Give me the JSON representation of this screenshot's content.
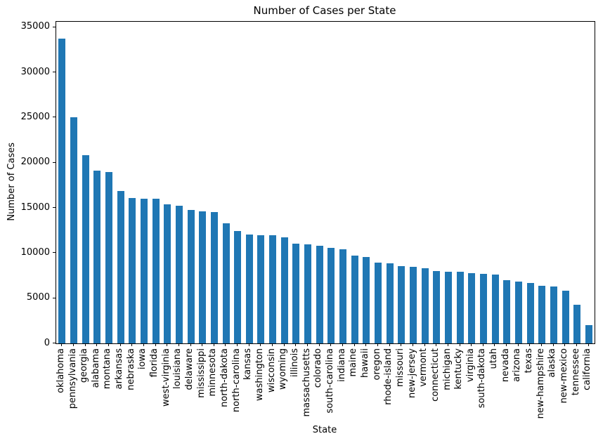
{
  "chart_data": {
    "type": "bar",
    "title": "Number of Cases per State",
    "xlabel": "State",
    "ylabel": "Number of Cases",
    "ylim": [
      0,
      35600
    ],
    "yticks": [
      0,
      5000,
      10000,
      15000,
      20000,
      25000,
      30000,
      35000
    ],
    "grid": false,
    "legend": "none",
    "bar_color": "#1f77b4",
    "categories": [
      "oklahoma",
      "pennsylvania",
      "georgia",
      "alabama",
      "montana",
      "arkansas",
      "nebraska",
      "iowa",
      "florida",
      "west-virginia",
      "louisiana",
      "delaware",
      "mississippi",
      "minnesota",
      "north-dakota",
      "north-carolina",
      "kansas",
      "washington",
      "wisconsin",
      "wyoming",
      "illinois",
      "massachusetts",
      "colorado",
      "south-carolina",
      "indiana",
      "maine",
      "hawaii",
      "oregon",
      "rhode-island",
      "missouri",
      "new-jersey",
      "vermont",
      "connecticut",
      "michigan",
      "kentucky",
      "virginia",
      "south-dakota",
      "utah",
      "nevada",
      "arizona",
      "texas",
      "new-hampshire",
      "alaska",
      "new-mexico",
      "tennessee",
      "california"
    ],
    "values": [
      33700,
      25000,
      20800,
      19100,
      19000,
      16900,
      16100,
      16050,
      16000,
      15400,
      15250,
      14750,
      14600,
      14500,
      13300,
      12450,
      12050,
      12000,
      11950,
      11750,
      11000,
      10950,
      10800,
      10550,
      10450,
      9750,
      9550,
      8950,
      8850,
      8550,
      8450,
      8350,
      8000,
      7950,
      7900,
      7800,
      7700,
      7600,
      7000,
      6850,
      6700,
      6350,
      6300,
      5800,
      4300,
      2000
    ]
  }
}
